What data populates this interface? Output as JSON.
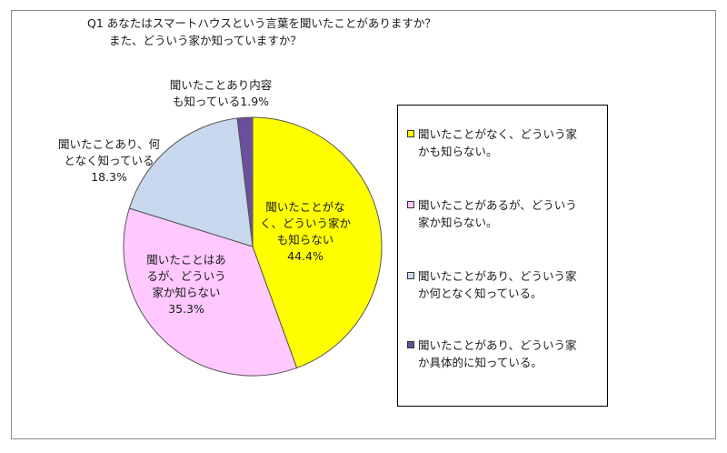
{
  "question": {
    "line1": "Q1 あなたはスマートハウスという言葉を聞いたことがありますか？",
    "line2": "また、どういう家か知っていますか？"
  },
  "chart_data": {
    "type": "pie",
    "title": "Q1 あなたはスマートハウスという言葉を聞いたことがありますか？ また、どういう家か知っていますか？",
    "slices": [
      {
        "label": "聞いたことがなく、どういう家かも知らない",
        "value": 44.4,
        "value_text": "44.4%",
        "color": "#ffff00",
        "legend": "聞いたことがなく、どういう家\nかも知らない。",
        "slice_label_lines": [
          "聞いたことがな",
          "く、どういう家か",
          "も知らない",
          "44.4%"
        ]
      },
      {
        "label": "聞いたことはあるが、どういう家か知らない",
        "value": 35.3,
        "value_text": "35.3%",
        "color": "#ffc8ff",
        "legend": "聞いたことがあるが、どういう\n家か知らない。",
        "slice_label_lines": [
          "聞いたことはあ",
          "るが、どういう",
          "家か知らない",
          "35.3%"
        ]
      },
      {
        "label": "聞いたことあり、何となく知っている",
        "value": 18.3,
        "value_text": "18.3%",
        "color": "#c8d8ee",
        "legend": "聞いたことがあり、どういう家\nか何となく知っている。",
        "slice_label_lines": [
          "聞いたことあり、何",
          "となく知っている",
          "18.3%"
        ]
      },
      {
        "label": "聞いたことあり内容も知っている",
        "value": 1.9,
        "value_text": "1.9%",
        "color": "#6a4f9e",
        "legend": "聞いたことがあり、どういう家\nか具体的に知っている。",
        "slice_label_lines": [
          "聞いたことあり内容",
          "も知っている1.9%"
        ]
      }
    ],
    "legend_position": "right"
  }
}
